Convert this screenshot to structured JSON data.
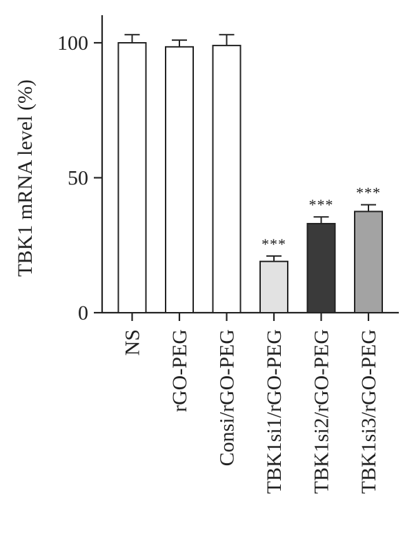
{
  "chart_data": {
    "type": "bar",
    "title": "",
    "xlabel": "",
    "ylabel": "TBK1 mRNA level (%)",
    "ylim": [
      0,
      110
    ],
    "yticks": [
      0,
      50,
      100
    ],
    "yticks_labels": [
      "0",
      "50",
      "100"
    ],
    "categories": [
      "NS",
      "rGO-PEG",
      "Consi/rGO-PEG",
      "TBK1si1/rGO-PEG",
      "TBK1si2/rGO-PEG",
      "TBK1si3/rGO-PEG"
    ],
    "values": [
      100,
      98.5,
      99,
      19,
      33,
      37.5
    ],
    "errors": [
      3,
      2.5,
      4,
      2,
      2.5,
      2.5
    ],
    "significance": [
      "",
      "",
      "",
      "***",
      "***",
      "***"
    ],
    "bar_colors": [
      "#ffffff",
      "#ffffff",
      "#ffffff",
      "#e2e2e2",
      "#3a3a3a",
      "#a3a3a3"
    ],
    "grid": false,
    "legend": "none"
  }
}
